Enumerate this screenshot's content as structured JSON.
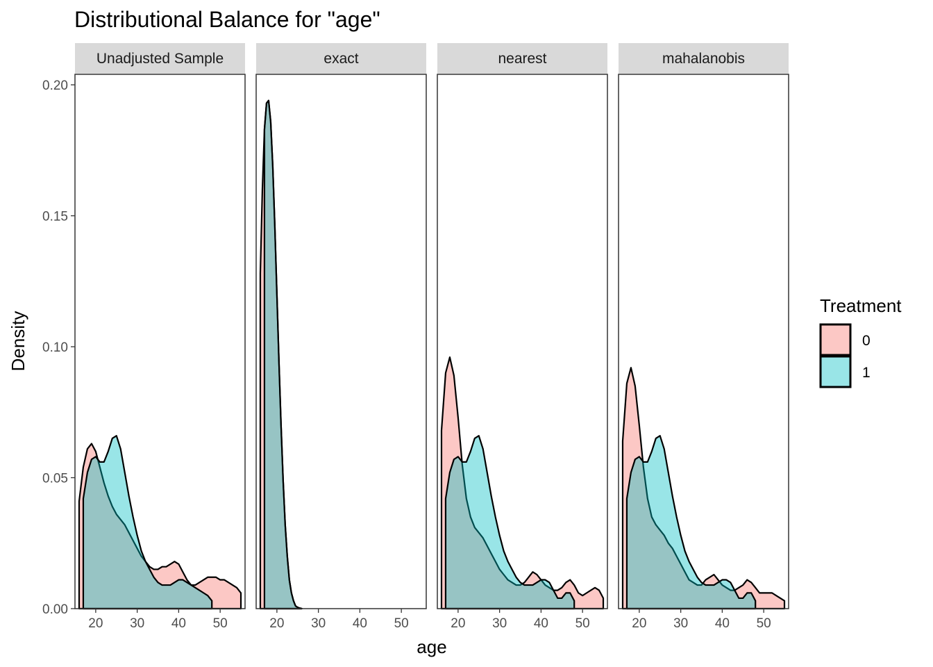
{
  "chart_data": {
    "type": "area",
    "title": "Distributional Balance for \"age\"",
    "xlabel": "age",
    "ylabel": "Density",
    "xlim": [
      15,
      56
    ],
    "ylim": [
      0,
      0.204
    ],
    "x_ticks": [
      20,
      30,
      40,
      50
    ],
    "x_tick_labels": [
      "20",
      "30",
      "40",
      "50"
    ],
    "y_ticks": [
      0,
      0.05,
      0.1,
      0.15,
      0.2
    ],
    "y_tick_labels": [
      "0.00",
      "0.05",
      "0.10",
      "0.15",
      "0.20"
    ],
    "grid": false,
    "legend": {
      "title": "Treatment",
      "position": "right",
      "entries": [
        {
          "label": "0",
          "color": "#F8766D"
        },
        {
          "label": "1",
          "color": "#00BFC4"
        }
      ]
    },
    "fill_alpha": 0.4,
    "panels": [
      {
        "label": "Unadjusted Sample",
        "series": [
          {
            "name": "0",
            "color": "#F8766D",
            "x": [
              16,
              17,
              18,
              19,
              20,
              21,
              22,
              23,
              24,
              25,
              26,
              27,
              28,
              29,
              30,
              31,
              32,
              33,
              34,
              35,
              36,
              37,
              38,
              39,
              40,
              41,
              42,
              43,
              44,
              45,
              46,
              47,
              48,
              49,
              50,
              51,
              52,
              53,
              54,
              55
            ],
            "y": [
              0.041,
              0.054,
              0.061,
              0.063,
              0.06,
              0.054,
              0.048,
              0.043,
              0.039,
              0.036,
              0.034,
              0.032,
              0.029,
              0.026,
              0.023,
              0.02,
              0.018,
              0.016,
              0.015,
              0.015,
              0.016,
              0.016,
              0.017,
              0.018,
              0.017,
              0.014,
              0.011,
              0.009,
              0.009,
              0.01,
              0.011,
              0.012,
              0.012,
              0.012,
              0.011,
              0.011,
              0.01,
              0.009,
              0.008,
              0.006
            ]
          },
          {
            "name": "1",
            "color": "#00BFC4",
            "x": [
              17,
              18,
              19,
              20,
              21,
              22,
              23,
              24,
              25,
              26,
              27,
              28,
              29,
              30,
              31,
              32,
              33,
              34,
              35,
              36,
              37,
              38,
              39,
              40,
              41,
              42,
              43,
              44,
              45,
              46,
              47,
              48
            ],
            "y": [
              0.042,
              0.052,
              0.057,
              0.058,
              0.056,
              0.056,
              0.06,
              0.065,
              0.066,
              0.061,
              0.052,
              0.043,
              0.035,
              0.028,
              0.022,
              0.018,
              0.015,
              0.012,
              0.01,
              0.009,
              0.009,
              0.009,
              0.01,
              0.011,
              0.011,
              0.01,
              0.009,
              0.008,
              0.007,
              0.006,
              0.005,
              0.003
            ]
          }
        ]
      },
      {
        "label": "exact",
        "series": [
          {
            "name": "0",
            "color": "#F8766D",
            "x": [
              16,
              16.5,
              17,
              17.5,
              18,
              18.5,
              19,
              19.5,
              20,
              20.5,
              21,
              21.5,
              22,
              22.5,
              23,
              23.5,
              24,
              24.5,
              25,
              25.5,
              26
            ],
            "y": [
              0.128,
              0.16,
              0.183,
              0.193,
              0.194,
              0.186,
              0.169,
              0.146,
              0.12,
              0.094,
              0.07,
              0.049,
              0.032,
              0.02,
              0.011,
              0.006,
              0.003,
              0.001,
              0.0005,
              0.0002,
              0.0
            ]
          },
          {
            "name": "1",
            "color": "#00BFC4",
            "x": [
              17,
              17.5,
              18,
              18.5,
              19,
              19.5,
              20,
              20.5,
              21,
              21.5,
              22,
              22.5,
              23,
              23.5,
              24,
              24.5,
              25,
              25.5,
              26
            ],
            "y": [
              0.183,
              0.193,
              0.194,
              0.186,
              0.169,
              0.146,
              0.12,
              0.094,
              0.07,
              0.049,
              0.032,
              0.02,
              0.011,
              0.006,
              0.003,
              0.001,
              0.0005,
              0.0002,
              0.0
            ]
          }
        ]
      },
      {
        "label": "nearest",
        "series": [
          {
            "name": "0",
            "color": "#F8766D",
            "x": [
              16,
              17,
              18,
              19,
              20,
              21,
              22,
              23,
              24,
              25,
              26,
              27,
              28,
              29,
              30,
              31,
              32,
              33,
              34,
              35,
              36,
              37,
              38,
              39,
              40,
              41,
              42,
              43,
              44,
              45,
              46,
              47,
              48,
              49,
              50,
              51,
              52,
              53,
              54,
              55
            ],
            "y": [
              0.068,
              0.09,
              0.096,
              0.089,
              0.073,
              0.055,
              0.042,
              0.035,
              0.031,
              0.029,
              0.027,
              0.024,
              0.021,
              0.018,
              0.015,
              0.013,
              0.011,
              0.01,
              0.009,
              0.009,
              0.01,
              0.012,
              0.014,
              0.013,
              0.011,
              0.009,
              0.008,
              0.007,
              0.007,
              0.008,
              0.01,
              0.011,
              0.009,
              0.006,
              0.005,
              0.006,
              0.007,
              0.008,
              0.007,
              0.004
            ]
          },
          {
            "name": "1",
            "color": "#00BFC4",
            "x": [
              17,
              18,
              19,
              20,
              21,
              22,
              23,
              24,
              25,
              26,
              27,
              28,
              29,
              30,
              31,
              32,
              33,
              34,
              35,
              36,
              37,
              38,
              39,
              40,
              41,
              42,
              43,
              44,
              45,
              46,
              47,
              48
            ],
            "y": [
              0.042,
              0.052,
              0.057,
              0.058,
              0.056,
              0.056,
              0.06,
              0.065,
              0.066,
              0.061,
              0.052,
              0.043,
              0.035,
              0.028,
              0.022,
              0.018,
              0.015,
              0.012,
              0.01,
              0.009,
              0.009,
              0.009,
              0.01,
              0.011,
              0.011,
              0.01,
              0.007,
              0.004,
              0.004,
              0.006,
              0.006,
              0.003
            ]
          }
        ]
      },
      {
        "label": "mahalanobis",
        "series": [
          {
            "name": "0",
            "color": "#F8766D",
            "x": [
              16,
              17,
              18,
              19,
              20,
              21,
              22,
              23,
              24,
              25,
              26,
              27,
              28,
              29,
              30,
              31,
              32,
              33,
              34,
              35,
              36,
              37,
              38,
              39,
              40,
              41,
              42,
              43,
              44,
              45,
              46,
              47,
              48,
              49,
              50,
              51,
              52,
              53,
              54,
              55
            ],
            "y": [
              0.064,
              0.086,
              0.092,
              0.085,
              0.07,
              0.054,
              0.042,
              0.035,
              0.032,
              0.03,
              0.028,
              0.025,
              0.023,
              0.02,
              0.017,
              0.014,
              0.011,
              0.01,
              0.009,
              0.009,
              0.011,
              0.012,
              0.013,
              0.011,
              0.009,
              0.008,
              0.007,
              0.007,
              0.008,
              0.009,
              0.011,
              0.01,
              0.008,
              0.006,
              0.006,
              0.006,
              0.006,
              0.005,
              0.004,
              0.003
            ]
          },
          {
            "name": "1",
            "color": "#00BFC4",
            "x": [
              17,
              18,
              19,
              20,
              21,
              22,
              23,
              24,
              25,
              26,
              27,
              28,
              29,
              30,
              31,
              32,
              33,
              34,
              35,
              36,
              37,
              38,
              39,
              40,
              41,
              42,
              43,
              44,
              45,
              46,
              47,
              48
            ],
            "y": [
              0.042,
              0.052,
              0.057,
              0.058,
              0.056,
              0.056,
              0.06,
              0.065,
              0.066,
              0.061,
              0.052,
              0.043,
              0.035,
              0.028,
              0.022,
              0.018,
              0.015,
              0.012,
              0.01,
              0.009,
              0.009,
              0.009,
              0.01,
              0.011,
              0.011,
              0.01,
              0.007,
              0.004,
              0.004,
              0.006,
              0.006,
              0.003
            ]
          }
        ]
      }
    ]
  }
}
